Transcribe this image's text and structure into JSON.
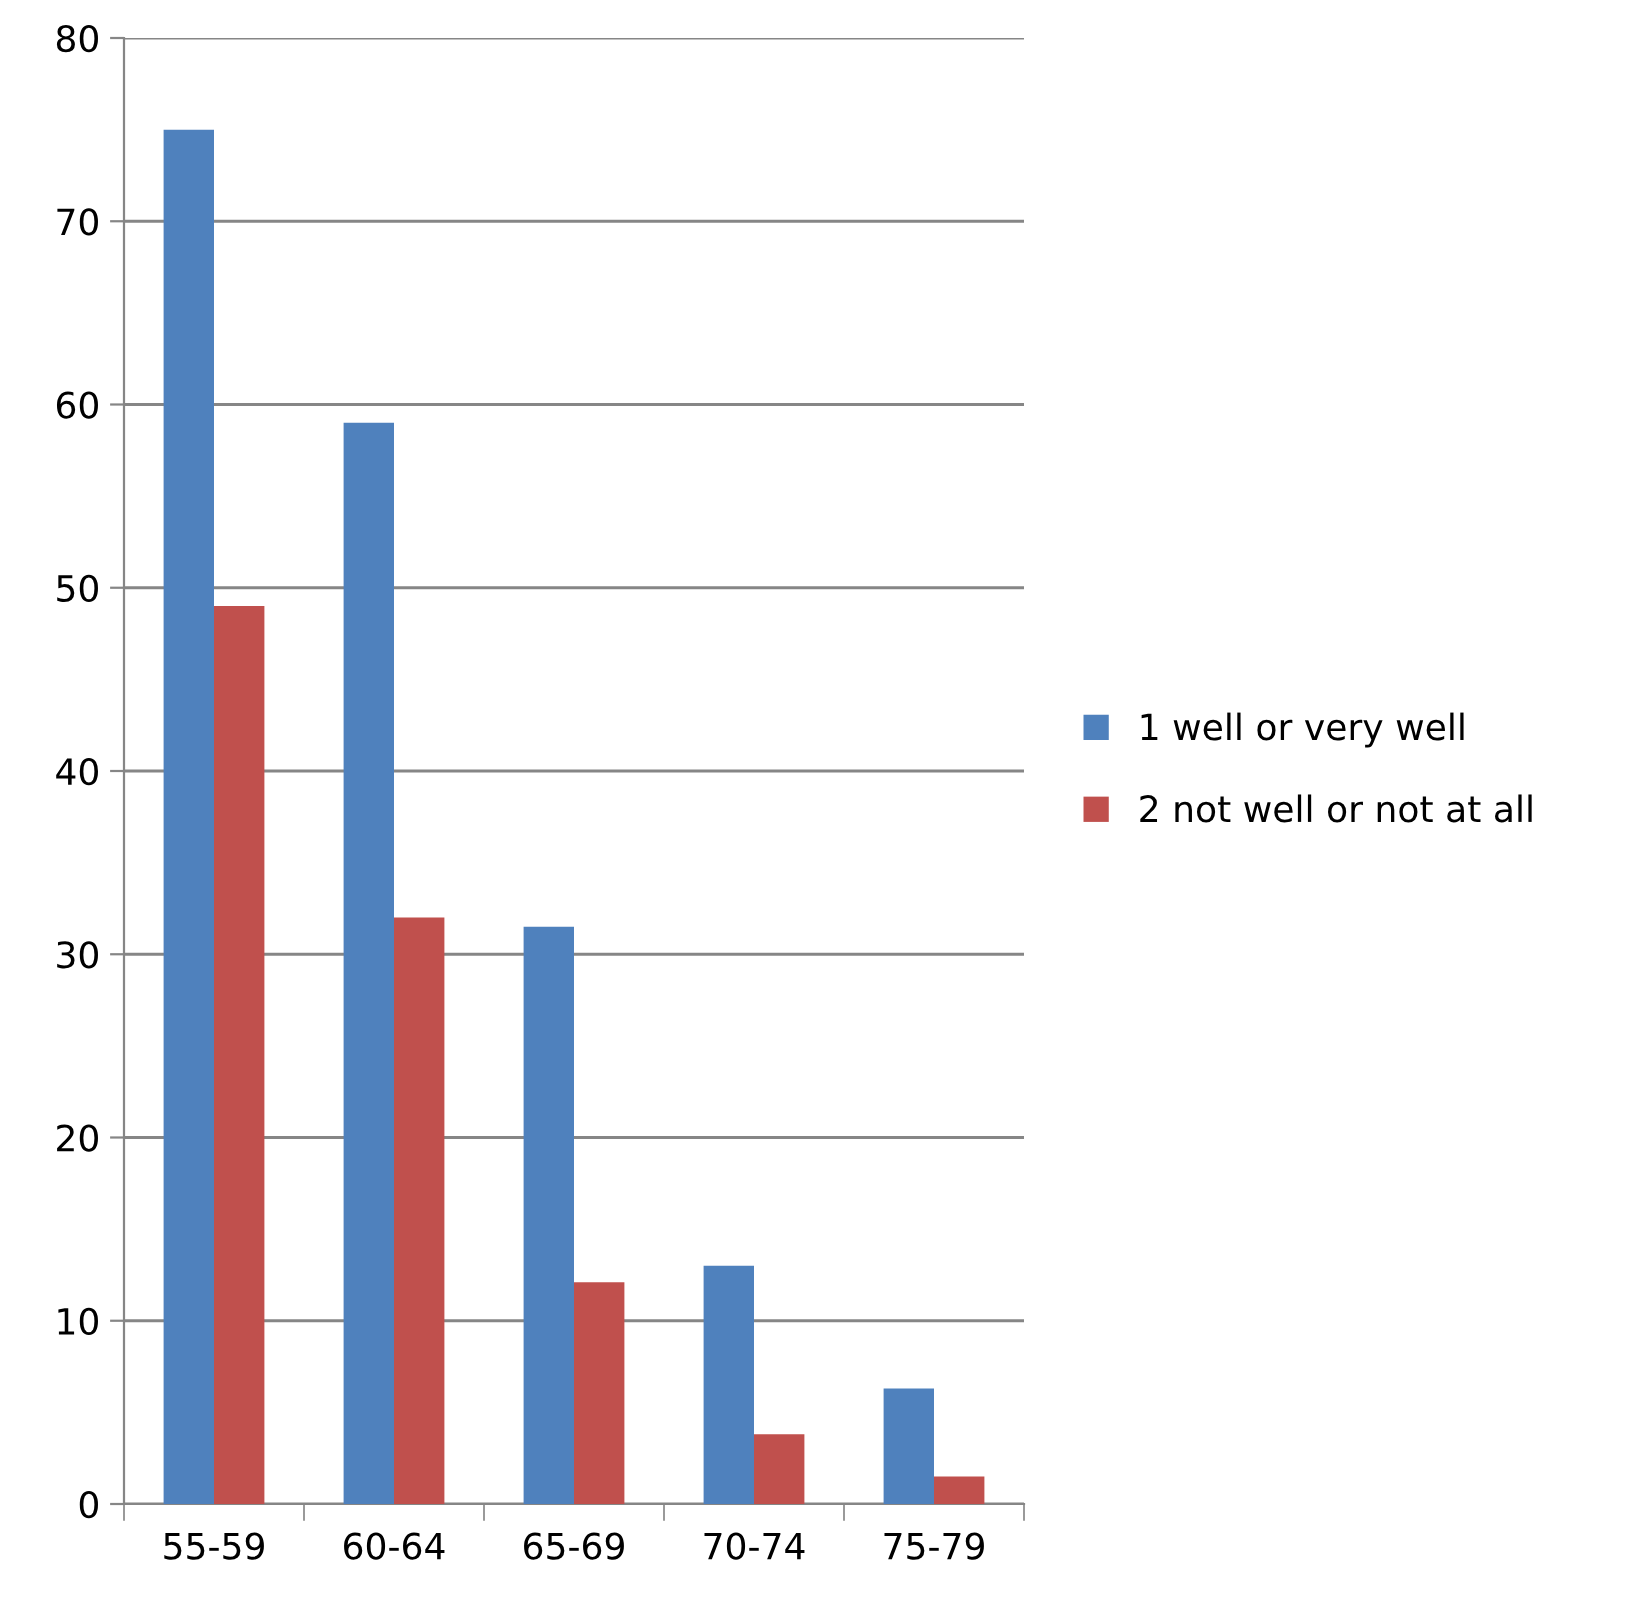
{
  "chart_data": {
    "type": "bar",
    "categories": [
      "55-59",
      "60-64",
      "65-69",
      "70-74",
      "75-79"
    ],
    "series": [
      {
        "name": "1 well or very well",
        "color": "#4f81bd",
        "values": [
          75,
          59,
          31.5,
          13,
          6.3
        ]
      },
      {
        "name": "2 not well or not at all",
        "color": "#c0504d",
        "values": [
          49,
          32,
          12.1,
          3.8,
          1.5
        ]
      }
    ],
    "ylim": [
      0,
      80
    ],
    "yticks": [
      0,
      10,
      20,
      30,
      40,
      50,
      60,
      70,
      80
    ],
    "grid": "y",
    "legend": "right"
  }
}
